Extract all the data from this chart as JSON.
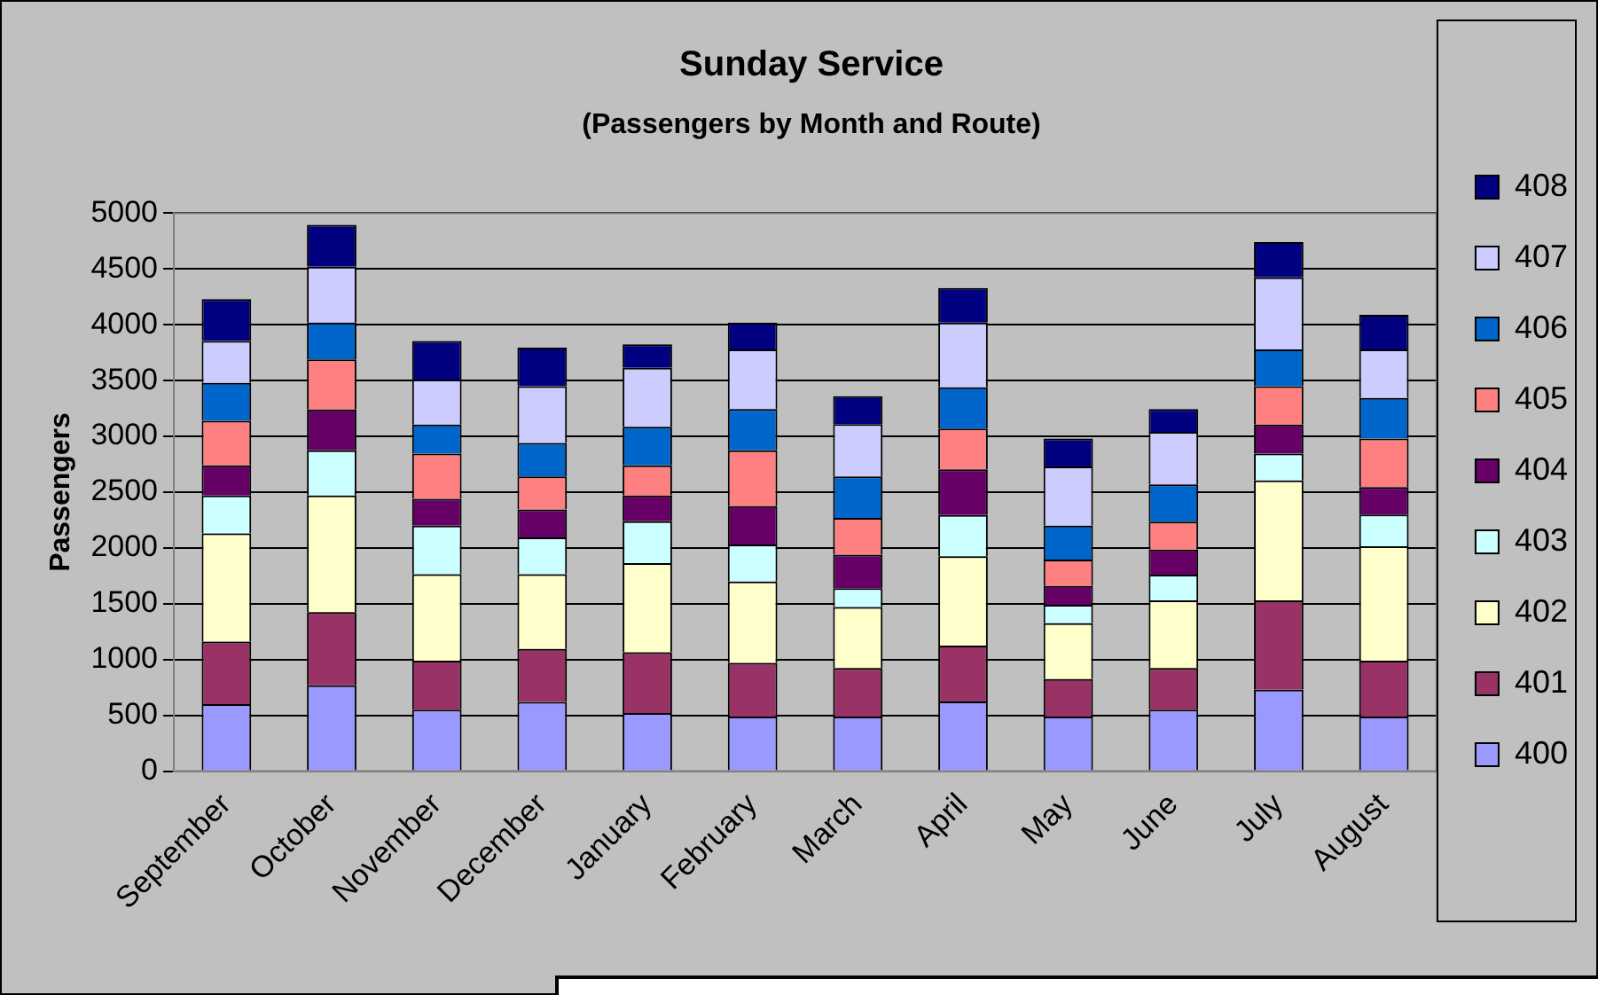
{
  "chart_data": {
    "type": "bar",
    "title": "Sunday Service",
    "subtitle": "(Passengers by Month and Route)",
    "ylabel": "Passengers",
    "categories": [
      "September",
      "October",
      "November",
      "December",
      "January",
      "February",
      "March",
      "April",
      "May",
      "June",
      "July",
      "August"
    ],
    "stacked": true,
    "ylim": [
      0,
      5000
    ],
    "yticks": [
      0,
      500,
      1000,
      1500,
      2000,
      2500,
      3000,
      3500,
      4000,
      4500,
      5000
    ],
    "grid": "y",
    "legend": "right",
    "series": [
      {
        "name": "400",
        "color": "#9999ff",
        "values": [
          600,
          770,
          550,
          620,
          520,
          490,
          490,
          625,
          490,
          550,
          730,
          490
        ]
      },
      {
        "name": "401",
        "color": "#993366",
        "values": [
          560,
          655,
          440,
          475,
          545,
          480,
          435,
          500,
          335,
          375,
          800,
          500
        ]
      },
      {
        "name": "402",
        "color": "#ffffcc",
        "values": [
          970,
          1045,
          775,
          670,
          800,
          730,
          545,
          800,
          500,
          605,
          1075,
          1025
        ]
      },
      {
        "name": "403",
        "color": "#ccffff",
        "values": [
          340,
          405,
          435,
          330,
          375,
          330,
          170,
          370,
          165,
          230,
          240,
          285
        ]
      },
      {
        "name": "404",
        "color": "#660066",
        "values": [
          270,
          365,
          240,
          250,
          230,
          345,
          300,
          410,
          170,
          225,
          260,
          245
        ]
      },
      {
        "name": "405",
        "color": "#ff8080",
        "values": [
          400,
          450,
          405,
          295,
          270,
          500,
          330,
          365,
          235,
          250,
          345,
          435
        ]
      },
      {
        "name": "406",
        "color": "#0066cc",
        "values": [
          340,
          330,
          260,
          300,
          345,
          370,
          370,
          370,
          305,
          335,
          330,
          365
        ]
      },
      {
        "name": "407",
        "color": "#ccccff",
        "values": [
          375,
          500,
          405,
          510,
          530,
          535,
          470,
          580,
          530,
          470,
          645,
          435
        ]
      },
      {
        "name": "408",
        "color": "#000080",
        "values": [
          375,
          375,
          345,
          345,
          210,
          240,
          250,
          310,
          250,
          205,
          315,
          310
        ]
      }
    ]
  }
}
